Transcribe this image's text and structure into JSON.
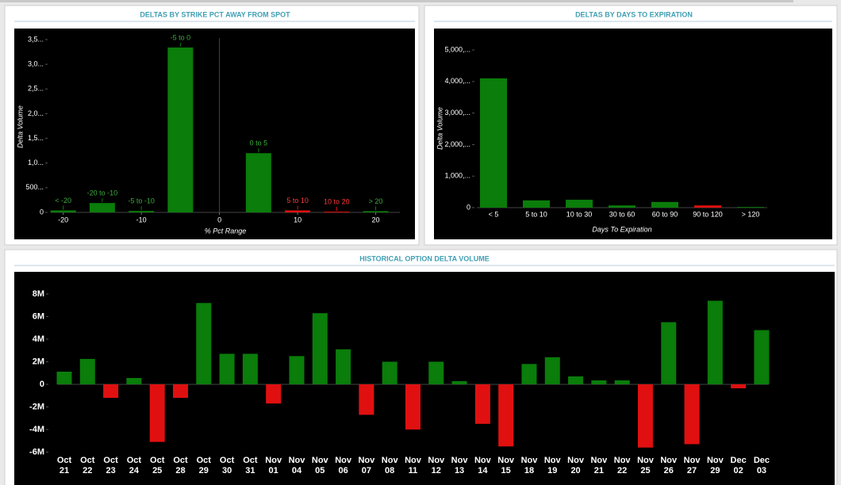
{
  "chart_data": [
    {
      "type": "bar",
      "title": "DELTAS BY STRIKE PCT AWAY FROM SPOT",
      "xlabel": "% Pct Range",
      "ylabel": "Delta Volume",
      "categories": [
        "< -20",
        "-20 to -10",
        "-5 to -10",
        "-5 to 0",
        "0 to 5",
        "5 to 10",
        "10 to 20",
        "> 20"
      ],
      "x": [
        -20,
        -15,
        -10,
        -5,
        5,
        10,
        15,
        20
      ],
      "values": [
        40,
        190,
        30,
        3340,
        1200,
        40,
        15,
        25
      ],
      "colors": [
        "#0a7d0a",
        "#0a7d0a",
        "#0a7d0a",
        "#0a7d0a",
        "#0a7d0a",
        "#e01010",
        "#e01010",
        "#0a7d0a"
      ],
      "xlim": [
        -22.2,
        23.7
      ],
      "xticks": [
        -20,
        -10,
        0,
        10,
        20
      ],
      "ylim": [
        0,
        3660
      ],
      "yticks": [
        0,
        {
          "value": 500,
          "label": "500..."
        },
        {
          "value": 1000,
          "label": "1,0..."
        },
        {
          "value": 1500,
          "label": "1,5..."
        },
        {
          "value": 2000,
          "label": "2,0..."
        },
        {
          "value": 2500,
          "label": "2,5..."
        },
        {
          "value": 3000,
          "label": "3,0..."
        },
        {
          "value": 3500,
          "label": "3,5..."
        }
      ]
    },
    {
      "type": "bar",
      "title": "DELTAS BY DAYS TO EXPIRATION",
      "xlabel": "Days To Expiration",
      "ylabel": "Delta Volume",
      "categories": [
        "< 5",
        "5 to 10",
        "10 to 30",
        "30 to 60",
        "60 to 90",
        "90 to 120",
        "> 120"
      ],
      "values": [
        4100,
        230,
        250,
        70,
        180,
        70,
        20
      ],
      "colors": [
        "#0a7d0a",
        "#0a7d0a",
        "#0a7d0a",
        "#0a7d0a",
        "#0a7d0a",
        "#e01010",
        "#0a7d0a"
      ],
      "ylim": [
        0,
        5580
      ],
      "yticks": [
        0,
        {
          "value": 1000,
          "label": "1,000,..."
        },
        {
          "value": 2000,
          "label": "2,000,..."
        },
        {
          "value": 3000,
          "label": "3,000,..."
        },
        {
          "value": 4000,
          "label": "4,000,..."
        },
        {
          "value": 5000,
          "label": "5,000,..."
        }
      ]
    },
    {
      "type": "bar",
      "title": "HISTORICAL OPTION DELTA VOLUME",
      "categories": [
        "Oct 21",
        "Oct 22",
        "Oct 23",
        "Oct 24",
        "Oct 25",
        "Oct 28",
        "Oct 29",
        "Oct 30",
        "Oct 31",
        "Nov 01",
        "Nov 04",
        "Nov 05",
        "Nov 06",
        "Nov 07",
        "Nov 08",
        "Nov 11",
        "Nov 12",
        "Nov 13",
        "Nov 14",
        "Nov 15",
        "Nov 18",
        "Nov 19",
        "Nov 20",
        "Nov 21",
        "Nov 22",
        "Nov 25",
        "Nov 26",
        "Nov 27",
        "Nov 29",
        "Dec 02",
        "Dec 03"
      ],
      "values": [
        1120000,
        2250000,
        -1200000,
        560000,
        -5100000,
        -1200000,
        7200000,
        2700000,
        2700000,
        -1700000,
        2500000,
        6300000,
        3100000,
        -2700000,
        2000000,
        -4000000,
        2000000,
        280000,
        -3500000,
        -5500000,
        1800000,
        2400000,
        700000,
        350000,
        350000,
        -5600000,
        5500000,
        -5300000,
        7400000,
        -350000,
        4800000
      ],
      "color": "#0a7d0a",
      "negative_color": "#e01010",
      "ylim": [
        -6670000,
        9470000
      ],
      "yticks": [
        {
          "value": -6000000,
          "label": "-6M"
        },
        {
          "value": -4000000,
          "label": "-4M"
        },
        {
          "value": -2000000,
          "label": "-2M"
        },
        0,
        {
          "value": 2000000,
          "label": "2M"
        },
        {
          "value": 4000000,
          "label": "4M"
        },
        {
          "value": 6000000,
          "label": "6M"
        },
        {
          "value": 8000000,
          "label": "8M"
        }
      ]
    }
  ]
}
